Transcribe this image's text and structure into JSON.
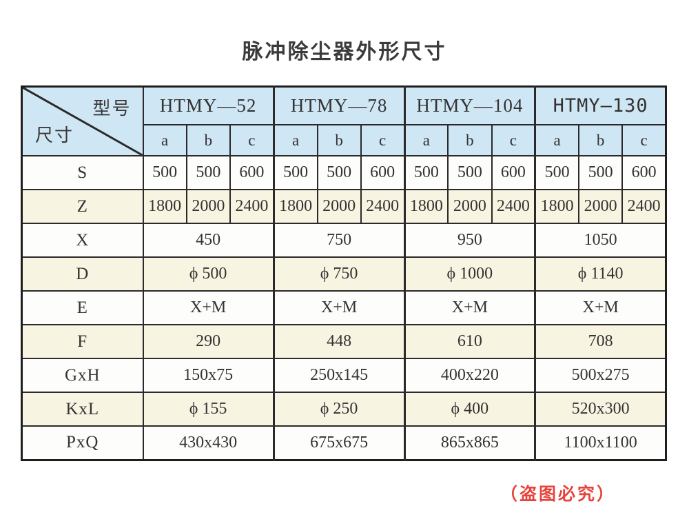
{
  "page": {
    "title": "脉冲除尘器外形尺寸",
    "notice": "（盗图必究）"
  },
  "colors": {
    "header_bg": "#cfe6f4",
    "cream_row_bg": "#f8f4e2",
    "white_row_bg": "#fdfdfc",
    "border": "#2b2929",
    "notice_red": "#e8423a",
    "text": "#343232"
  },
  "table": {
    "corner": {
      "top_right_label": "型号",
      "bottom_left_label": "尺寸"
    },
    "models": [
      {
        "name": "HTMY—52"
      },
      {
        "name": "HTMY—78"
      },
      {
        "name": "HTMY—104"
      },
      {
        "name": "HTMY—130"
      }
    ],
    "sub_columns": [
      "a",
      "b",
      "c"
    ],
    "rows": [
      {
        "label": "S",
        "span": "each",
        "values": [
          "500",
          "500",
          "600",
          "500",
          "500",
          "600",
          "500",
          "500",
          "600",
          "500",
          "500",
          "600"
        ]
      },
      {
        "label": "Z",
        "span": "each",
        "values": [
          "1800",
          "2000",
          "2400",
          "1800",
          "2000",
          "2400",
          "1800",
          "2000",
          "2400",
          "1800",
          "2000",
          "2400"
        ]
      },
      {
        "label": "X",
        "span": "group",
        "values": [
          "450",
          "750",
          "950",
          "1050"
        ]
      },
      {
        "label": "D",
        "span": "group",
        "values": [
          "ϕ 500",
          "ϕ 750",
          "ϕ 1000",
          "ϕ 1140"
        ]
      },
      {
        "label": "E",
        "span": "group",
        "values": [
          "X+M",
          "X+M",
          "X+M",
          "X+M"
        ]
      },
      {
        "label": "F",
        "span": "group",
        "values": [
          "290",
          "448",
          "610",
          "708"
        ]
      },
      {
        "label": "GxH",
        "span": "group",
        "values": [
          "150x75",
          "250x145",
          "400x220",
          "500x275"
        ]
      },
      {
        "label": "KxL",
        "span": "group",
        "values": [
          "ϕ 155",
          "ϕ 250",
          "ϕ 400",
          "520x300"
        ]
      },
      {
        "label": "PxQ",
        "span": "group",
        "values": [
          "430x430",
          "675x675",
          "865x865",
          "1100x1100"
        ]
      }
    ]
  }
}
